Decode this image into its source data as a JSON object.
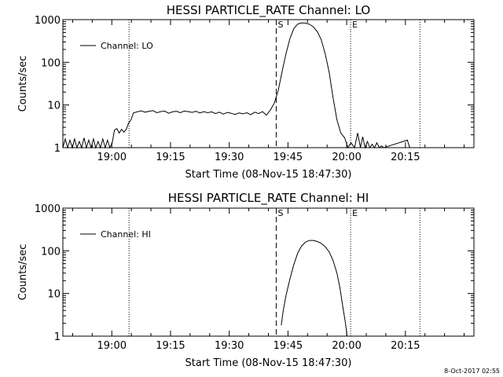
{
  "chart_data": [
    {
      "type": "line",
      "title": "HESSI PARTICLE_RATE Channel: LO",
      "xlabel": "Start Time (08-Nov-15 18:47:30)",
      "ylabel": "Counts/sec",
      "yscale": "log",
      "ylim": [
        1,
        1000
      ],
      "xlim_minutes": [
        0,
        105
      ],
      "x_tick_minutes": [
        12.5,
        27.5,
        42.5,
        57.5,
        72.5,
        87.5
      ],
      "x_tick_labels": [
        "19:00",
        "19:15",
        "19:30",
        "19:45",
        "20:00",
        "20:15"
      ],
      "y_tick_values": [
        1,
        10,
        100,
        1000
      ],
      "y_tick_labels": [
        "1",
        "10",
        "100",
        "1000"
      ],
      "legend": {
        "label": "Channel: LO",
        "position": "top-left"
      },
      "markers": [
        {
          "label": "",
          "minutes": 16.9,
          "style": "dotted"
        },
        {
          "label": "S",
          "minutes": 54.5,
          "style": "dashed"
        },
        {
          "label": "E",
          "minutes": 73.5,
          "style": "dotted"
        },
        {
          "label": "",
          "minutes": 91.2,
          "style": "dotted"
        }
      ],
      "series": [
        {
          "name": "Channel: LO",
          "x_minutes": [
            0,
            0.6,
            1.2,
            1.8,
            2.4,
            3.0,
            3.6,
            4.2,
            4.8,
            5.4,
            6.0,
            6.6,
            7.2,
            7.8,
            8.4,
            9.0,
            9.6,
            10.2,
            10.8,
            11.4,
            12.0,
            12.6,
            13.2,
            13.8,
            14.4,
            15.0,
            15.6,
            16.2,
            16.8,
            17.4,
            18.0,
            19.0,
            20.0,
            21.0,
            22.0,
            23.0,
            24.0,
            25.0,
            26.0,
            27.0,
            28.0,
            29.0,
            30.0,
            31.0,
            32.0,
            33.0,
            34.0,
            35.0,
            36.0,
            37.0,
            38.0,
            39.0,
            40.0,
            41.0,
            42.0,
            43.0,
            44.0,
            45.0,
            46.0,
            47.0,
            48.0,
            49.0,
            50.0,
            51.0,
            52.0,
            53.0,
            54.0,
            55.0,
            56.0,
            57.0,
            58.0,
            59.0,
            60.0,
            61.0,
            62.0,
            63.0,
            64.0,
            65.0,
            66.0,
            67.0,
            68.0,
            69.0,
            70.0,
            71.0,
            72.0,
            72.8,
            73.6,
            74.5,
            75.3,
            76.0,
            76.6,
            77.2,
            77.8,
            78.4,
            79.0,
            79.6,
            80.2,
            80.8,
            81.4,
            82.0,
            88.0,
            88.6,
            89.2
          ],
          "y_values": [
            1,
            1.6,
            1,
            1.5,
            1,
            1.6,
            1,
            1.4,
            1,
            1.7,
            1,
            1.5,
            1,
            1.6,
            1,
            1.4,
            1,
            1.6,
            1,
            1.5,
            1,
            1.3,
            2.6,
            2.8,
            2.2,
            2.7,
            2.3,
            2.7,
            3.8,
            4.5,
            6.5,
            6.9,
            7.3,
            6.8,
            7.1,
            7.4,
            6.6,
            7.0,
            7.2,
            6.4,
            6.9,
            7.1,
            6.6,
            7.2,
            7.0,
            6.7,
            7.1,
            6.5,
            7.0,
            6.6,
            6.9,
            6.3,
            6.8,
            6.1,
            6.7,
            6.4,
            6.0,
            6.5,
            6.2,
            6.6,
            5.9,
            6.8,
            6.3,
            7.0,
            5.8,
            7.6,
            11,
            22,
            60,
            160,
            360,
            620,
            790,
            840,
            830,
            780,
            670,
            520,
            340,
            160,
            60,
            15,
            4.5,
            2.2,
            1.7,
            1,
            1.3,
            1,
            2.2,
            1,
            1.8,
            1,
            1.4,
            1,
            1.2,
            1,
            1.3,
            1,
            1.1,
            1,
            1.5,
            1,
            1
          ]
        }
      ]
    },
    {
      "type": "line",
      "title": "HESSI PARTICLE_RATE Channel: HI",
      "xlabel": "Start Time (08-Nov-15 18:47:30)",
      "ylabel": "Counts/sec",
      "yscale": "log",
      "ylim": [
        1,
        1000
      ],
      "xlim_minutes": [
        0,
        105
      ],
      "x_tick_minutes": [
        12.5,
        27.5,
        42.5,
        57.5,
        72.5,
        87.5
      ],
      "x_tick_labels": [
        "19:00",
        "19:15",
        "19:30",
        "19:45",
        "20:00",
        "20:15"
      ],
      "y_tick_values": [
        1,
        10,
        100,
        1000
      ],
      "y_tick_labels": [
        "1",
        "10",
        "100",
        "1000"
      ],
      "legend": {
        "label": "Channel: HI",
        "position": "top-left"
      },
      "markers": [
        {
          "label": "",
          "minutes": 16.9,
          "style": "dotted"
        },
        {
          "label": "S",
          "minutes": 54.5,
          "style": "dashed"
        },
        {
          "label": "E",
          "minutes": 73.5,
          "style": "dotted"
        },
        {
          "label": "",
          "minutes": 91.2,
          "style": "dotted"
        }
      ],
      "series": [
        {
          "name": "Channel: HI",
          "x_minutes": [
            55.8,
            56.3,
            57.0,
            58.0,
            59.0,
            60.0,
            61.0,
            62.0,
            63.0,
            64.0,
            65.0,
            66.0,
            67.0,
            68.0,
            69.0,
            70.0,
            70.8,
            71.5,
            72.2,
            72.6
          ],
          "y_values": [
            1.8,
            4,
            9,
            22,
            48,
            90,
            130,
            160,
            175,
            175,
            165,
            150,
            125,
            95,
            60,
            30,
            13,
            5,
            2,
            1
          ]
        }
      ]
    }
  ],
  "footer": {
    "timestamp": "8-Oct-2017 02:55"
  }
}
